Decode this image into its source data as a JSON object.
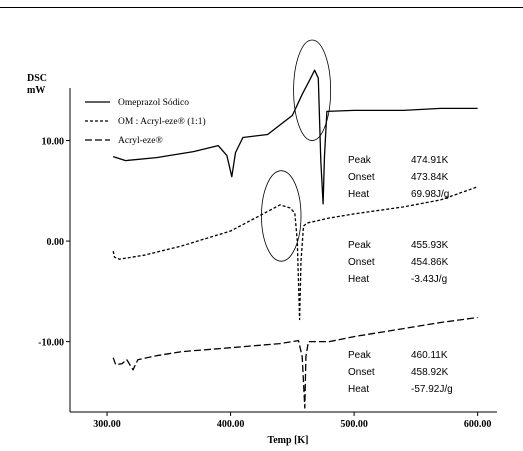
{
  "chart_data": {
    "type": "line",
    "title": "",
    "ylabel_line1": "DSC",
    "ylabel_line2": "mW",
    "xlabel": "Temp [K]",
    "xlim": [
      270,
      610
    ],
    "ylim": [
      -17,
      20
    ],
    "x_ticks": [
      "300.00",
      "400.00",
      "500.00",
      "600.00"
    ],
    "x_tick_values": [
      300,
      400,
      500,
      600
    ],
    "y_ticks": [
      "10.00",
      "0.00",
      "-10.00"
    ],
    "y_tick_values": [
      10,
      0,
      -10
    ],
    "series": [
      {
        "name": "Omeprazol Sódico",
        "dash": "solid",
        "points": [
          [
            305,
            8.4
          ],
          [
            315,
            8.0
          ],
          [
            340,
            8.3
          ],
          [
            370,
            8.9
          ],
          [
            390,
            9.5
          ],
          [
            397,
            8.5
          ],
          [
            401,
            6.4
          ],
          [
            404,
            8.8
          ],
          [
            410,
            10.3
          ],
          [
            430,
            10.6
          ],
          [
            450,
            12.5
          ],
          [
            458,
            14.6
          ],
          [
            464,
            16.0
          ],
          [
            468,
            17.0
          ],
          [
            471,
            16.2
          ],
          [
            473,
            8.0
          ],
          [
            474.9,
            3.7
          ],
          [
            476,
            8.5
          ],
          [
            478,
            12.9
          ],
          [
            500,
            13.0
          ],
          [
            540,
            13.0
          ],
          [
            570,
            13.2
          ],
          [
            600,
            13.2
          ]
        ]
      },
      {
        "name": "OM : Acryl-eze® (1:1)",
        "dash": "short",
        "points": [
          [
            305,
            -1.0
          ],
          [
            306,
            -1.6
          ],
          [
            310,
            -1.8
          ],
          [
            330,
            -1.4
          ],
          [
            360,
            -0.5
          ],
          [
            400,
            1.0
          ],
          [
            420,
            2.3
          ],
          [
            440,
            3.6
          ],
          [
            448,
            3.3
          ],
          [
            452,
            2.8
          ],
          [
            454,
            0.0
          ],
          [
            455.9,
            -7.8
          ],
          [
            457,
            -2.0
          ],
          [
            459,
            1.5
          ],
          [
            462,
            1.8
          ],
          [
            480,
            2.3
          ],
          [
            500,
            2.7
          ],
          [
            540,
            3.4
          ],
          [
            570,
            4.1
          ],
          [
            600,
            5.4
          ]
        ]
      },
      {
        "name": "Acryl-eze®",
        "dash": "long",
        "points": [
          [
            305,
            -11.6
          ],
          [
            307,
            -12.3
          ],
          [
            312,
            -12.2
          ],
          [
            316,
            -11.8
          ],
          [
            321,
            -12.8
          ],
          [
            325,
            -11.8
          ],
          [
            340,
            -11.4
          ],
          [
            360,
            -11.0
          ],
          [
            400,
            -10.6
          ],
          [
            440,
            -10.2
          ],
          [
            455,
            -9.9
          ],
          [
            458,
            -11.5
          ],
          [
            460.1,
            -16.6
          ],
          [
            461,
            -11.5
          ],
          [
            463,
            -10.0
          ],
          [
            480,
            -10.0
          ],
          [
            500,
            -9.5
          ],
          [
            540,
            -8.7
          ],
          [
            570,
            -8.1
          ],
          [
            600,
            -7.6
          ]
        ]
      }
    ],
    "circles": [
      {
        "cx": 466,
        "cy": 15.0,
        "rx": 15,
        "ry": 5.0
      },
      {
        "cx": 441,
        "cy": 2.5,
        "rx": 16,
        "ry": 4.5
      }
    ],
    "annotations": [
      {
        "lines": [
          {
            "label": "Peak",
            "value": "474.91K"
          },
          {
            "label": "Onset",
            "value": "473.84K"
          },
          {
            "label": "Heat",
            "value": "69.98J/g"
          }
        ]
      },
      {
        "lines": [
          {
            "label": "Peak",
            "value": "455.93K"
          },
          {
            "label": "Onset",
            "value": "454.86K"
          },
          {
            "label": "Heat",
            "value": "-3.43J/g"
          }
        ]
      },
      {
        "lines": [
          {
            "label": "Peak",
            "value": "460.11K"
          },
          {
            "label": "Onset",
            "value": "458.92K"
          },
          {
            "label": "Heat",
            "value": "-57.92J/g"
          }
        ]
      }
    ]
  }
}
